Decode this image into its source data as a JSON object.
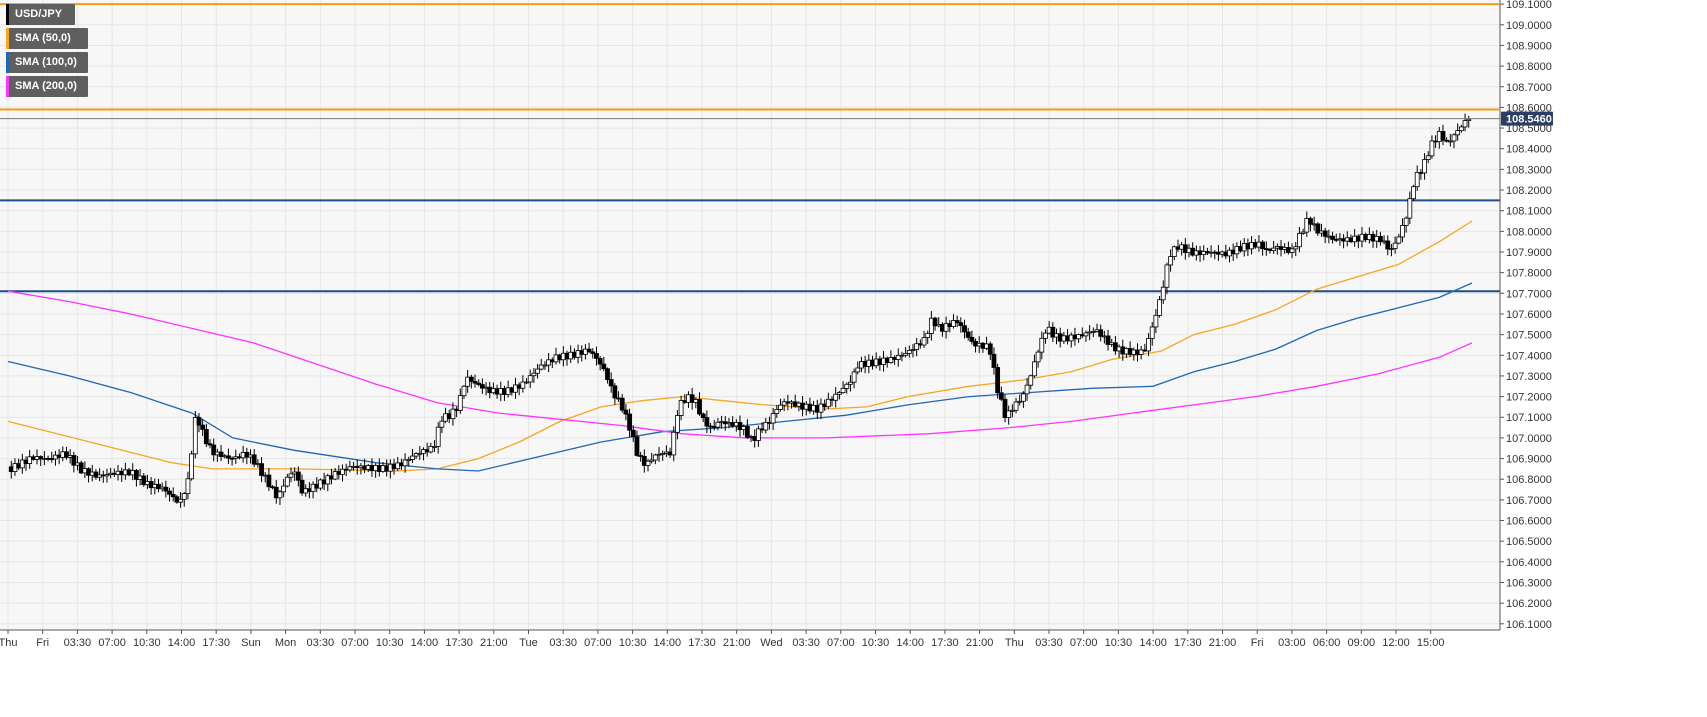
{
  "legend": {
    "symbol": "USD/JPY",
    "sma50": "SMA (50,0)",
    "sma100": "SMA (100,0)",
    "sma200": "SMA (200,0)"
  },
  "colors": {
    "background": "#f7f7f7",
    "grid": "#e6e6e6",
    "candle": "#000000",
    "sma50": "#f5a623",
    "sma100": "#2166b3",
    "sma200": "#ff33ff",
    "resistance": "#f39c12",
    "support": "#1f4e8c",
    "price_tag": "#2c3e63"
  },
  "chart_data": {
    "type": "candlestick",
    "title": "",
    "symbol": "USD/JPY",
    "ylim": [
      106.07,
      109.12
    ],
    "y_ticks": [
      106.1,
      106.2,
      106.3,
      106.4,
      106.5,
      106.6,
      106.7,
      106.8,
      106.9,
      107.0,
      107.1,
      107.2,
      107.3,
      107.4,
      107.5,
      107.6,
      107.7,
      107.8,
      107.9,
      108.0,
      108.1,
      108.2,
      108.3,
      108.4,
      108.5,
      108.6,
      108.7,
      108.8,
      108.9,
      109.0,
      109.1
    ],
    "x_ticks": [
      "Thu",
      "Fri",
      "03:30",
      "07:00",
      "10:30",
      "14:00",
      "17:30",
      "Sun",
      "Mon",
      "03:30",
      "07:00",
      "10:30",
      "14:00",
      "17:30",
      "21:00",
      "Tue",
      "03:30",
      "07:00",
      "10:30",
      "14:00",
      "17:30",
      "21:00",
      "Wed",
      "03:30",
      "07:00",
      "10:30",
      "14:00",
      "17:30",
      "21:00",
      "Thu",
      "03:30",
      "07:00",
      "10:30",
      "14:00",
      "17:30",
      "21:00",
      "Fri",
      "03:00",
      "06:00",
      "09:00",
      "12:00",
      "15:00"
    ],
    "last_price": "108.5460",
    "horizontal_levels": [
      {
        "kind": "resistance",
        "value": 109.1
      },
      {
        "kind": "resistance",
        "value": 108.59
      },
      {
        "kind": "support",
        "value": 108.15
      },
      {
        "kind": "support",
        "value": 107.71
      }
    ],
    "close_path": [
      [
        0,
        106.86
      ],
      [
        6,
        106.9
      ],
      [
        10,
        106.88
      ],
      [
        14,
        106.9
      ],
      [
        18,
        106.82
      ],
      [
        22,
        106.8
      ],
      [
        26,
        106.83
      ],
      [
        30,
        106.85
      ],
      [
        34,
        106.8
      ],
      [
        38,
        106.78
      ],
      [
        42,
        106.7
      ],
      [
        44,
        106.8
      ],
      [
        46,
        107.12
      ],
      [
        48,
        107.0
      ],
      [
        50,
        106.92
      ],
      [
        52,
        106.9
      ],
      [
        54,
        106.88
      ],
      [
        56,
        106.88
      ],
      [
        58,
        106.9
      ],
      [
        60,
        106.87
      ],
      [
        66,
        106.7
      ],
      [
        68,
        106.8
      ],
      [
        70,
        106.85
      ],
      [
        72,
        106.75
      ],
      [
        76,
        106.8
      ],
      [
        80,
        106.85
      ],
      [
        84,
        106.88
      ],
      [
        88,
        106.86
      ],
      [
        92,
        106.84
      ],
      [
        96,
        106.85
      ],
      [
        100,
        106.9
      ],
      [
        104,
        106.93
      ],
      [
        106,
        107.08
      ],
      [
        108,
        107.1
      ],
      [
        110,
        107.15
      ],
      [
        112,
        107.3
      ],
      [
        114,
        107.28
      ],
      [
        118,
        107.25
      ],
      [
        122,
        107.25
      ],
      [
        126,
        107.28
      ],
      [
        130,
        107.35
      ],
      [
        134,
        107.38
      ],
      [
        138,
        107.38
      ],
      [
        142,
        107.4
      ],
      [
        144,
        107.36
      ],
      [
        146,
        107.3
      ],
      [
        148,
        107.2
      ],
      [
        150,
        107.15
      ],
      [
        152,
        107.05
      ],
      [
        154,
        106.92
      ],
      [
        156,
        106.88
      ],
      [
        158,
        106.93
      ],
      [
        160,
        106.95
      ],
      [
        162,
        106.95
      ],
      [
        164,
        107.18
      ],
      [
        166,
        107.22
      ],
      [
        168,
        107.2
      ],
      [
        170,
        107.1
      ],
      [
        172,
        107.05
      ],
      [
        174,
        107.08
      ],
      [
        176,
        107.06
      ],
      [
        178,
        107.05
      ],
      [
        180,
        107.02
      ],
      [
        182,
        106.96
      ],
      [
        184,
        107.02
      ],
      [
        186,
        107.05
      ],
      [
        188,
        107.12
      ],
      [
        190,
        107.16
      ],
      [
        194,
        107.15
      ],
      [
        198,
        107.15
      ],
      [
        202,
        107.22
      ],
      [
        206,
        107.3
      ],
      [
        208,
        107.38
      ],
      [
        212,
        107.38
      ],
      [
        216,
        107.38
      ],
      [
        220,
        107.4
      ],
      [
        224,
        107.45
      ],
      [
        226,
        107.55
      ],
      [
        228,
        107.5
      ],
      [
        232,
        107.55
      ],
      [
        236,
        107.45
      ],
      [
        240,
        107.45
      ],
      [
        242,
        107.25
      ],
      [
        244,
        107.12
      ],
      [
        246,
        107.18
      ],
      [
        248,
        107.22
      ],
      [
        250,
        107.32
      ],
      [
        252,
        107.45
      ],
      [
        254,
        107.55
      ],
      [
        256,
        107.5
      ],
      [
        258,
        107.48
      ],
      [
        262,
        107.48
      ],
      [
        266,
        107.5
      ],
      [
        270,
        107.42
      ],
      [
        272,
        107.4
      ],
      [
        276,
        107.4
      ],
      [
        278,
        107.42
      ],
      [
        280,
        107.55
      ],
      [
        282,
        107.7
      ],
      [
        284,
        107.9
      ],
      [
        286,
        107.95
      ],
      [
        290,
        107.92
      ],
      [
        294,
        107.92
      ],
      [
        298,
        107.9
      ],
      [
        302,
        107.92
      ],
      [
        306,
        107.92
      ],
      [
        308,
        107.88
      ],
      [
        310,
        107.9
      ],
      [
        314,
        107.88
      ],
      [
        318,
        108.05
      ],
      [
        320,
        108.0
      ],
      [
        324,
        107.97
      ],
      [
        328,
        107.98
      ],
      [
        332,
        108.0
      ],
      [
        336,
        107.98
      ],
      [
        338,
        107.92
      ],
      [
        340,
        107.98
      ],
      [
        342,
        108.08
      ],
      [
        344,
        108.25
      ],
      [
        346,
        108.3
      ],
      [
        348,
        108.4
      ],
      [
        350,
        108.45
      ],
      [
        352,
        108.4
      ],
      [
        354,
        108.45
      ],
      [
        356,
        108.5
      ],
      [
        358,
        108.55
      ]
    ],
    "series": [
      {
        "name": "SMA (50,0)",
        "key": "sma50",
        "points": [
          [
            0,
            107.08
          ],
          [
            20,
            106.98
          ],
          [
            40,
            106.88
          ],
          [
            50,
            106.85
          ],
          [
            70,
            106.85
          ],
          [
            95,
            106.84
          ],
          [
            105,
            106.85
          ],
          [
            115,
            106.9
          ],
          [
            125,
            106.98
          ],
          [
            135,
            107.08
          ],
          [
            145,
            107.15
          ],
          [
            155,
            107.18
          ],
          [
            165,
            107.2
          ],
          [
            175,
            107.18
          ],
          [
            185,
            107.16
          ],
          [
            200,
            107.14
          ],
          [
            210,
            107.15
          ],
          [
            220,
            107.2
          ],
          [
            235,
            107.25
          ],
          [
            248,
            107.28
          ],
          [
            260,
            107.32
          ],
          [
            270,
            107.38
          ],
          [
            282,
            107.42
          ],
          [
            290,
            107.5
          ],
          [
            300,
            107.55
          ],
          [
            310,
            107.62
          ],
          [
            320,
            107.72
          ],
          [
            330,
            107.78
          ],
          [
            340,
            107.84
          ],
          [
            350,
            107.95
          ],
          [
            358,
            108.05
          ]
        ]
      },
      {
        "name": "SMA (100,0)",
        "key": "sma100",
        "points": [
          [
            0,
            107.37
          ],
          [
            15,
            107.3
          ],
          [
            30,
            107.22
          ],
          [
            45,
            107.12
          ],
          [
            55,
            107.0
          ],
          [
            70,
            106.94
          ],
          [
            90,
            106.88
          ],
          [
            105,
            106.85
          ],
          [
            115,
            106.84
          ],
          [
            130,
            106.91
          ],
          [
            145,
            106.98
          ],
          [
            160,
            107.03
          ],
          [
            175,
            107.05
          ],
          [
            190,
            107.08
          ],
          [
            205,
            107.11
          ],
          [
            220,
            107.16
          ],
          [
            235,
            107.2
          ],
          [
            250,
            107.22
          ],
          [
            265,
            107.24
          ],
          [
            280,
            107.25
          ],
          [
            290,
            107.32
          ],
          [
            300,
            107.37
          ],
          [
            310,
            107.43
          ],
          [
            320,
            107.52
          ],
          [
            330,
            107.58
          ],
          [
            340,
            107.63
          ],
          [
            350,
            107.68
          ],
          [
            358,
            107.75
          ]
        ]
      },
      {
        "name": "SMA (200,0)",
        "key": "sma200",
        "points": [
          [
            0,
            107.71
          ],
          [
            15,
            107.66
          ],
          [
            30,
            107.6
          ],
          [
            45,
            107.53
          ],
          [
            60,
            107.46
          ],
          [
            75,
            107.36
          ],
          [
            90,
            107.26
          ],
          [
            105,
            107.17
          ],
          [
            120,
            107.12
          ],
          [
            135,
            107.09
          ],
          [
            150,
            107.06
          ],
          [
            165,
            107.02
          ],
          [
            180,
            107.0
          ],
          [
            200,
            107.0
          ],
          [
            225,
            107.02
          ],
          [
            245,
            107.05
          ],
          [
            260,
            107.08
          ],
          [
            275,
            107.12
          ],
          [
            290,
            107.16
          ],
          [
            305,
            107.2
          ],
          [
            320,
            107.25
          ],
          [
            335,
            107.31
          ],
          [
            350,
            107.39
          ],
          [
            358,
            107.46
          ]
        ]
      }
    ]
  }
}
